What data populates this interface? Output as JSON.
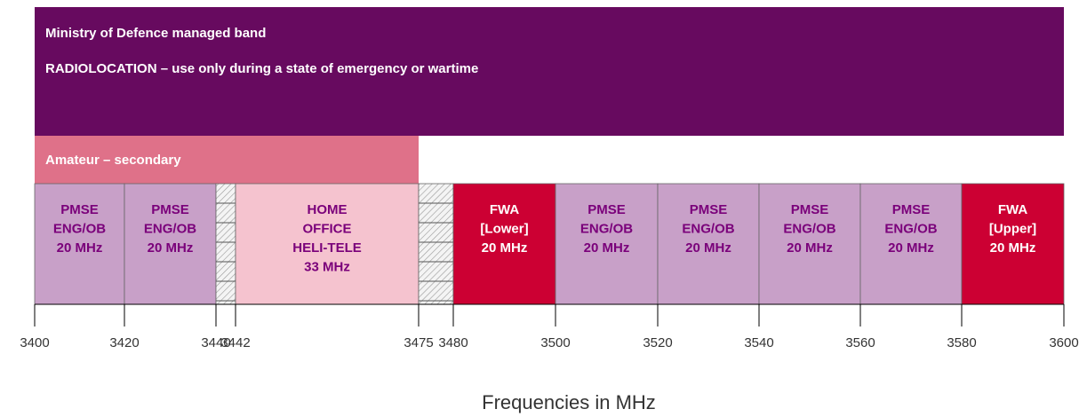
{
  "axis": {
    "title": "Frequencies in MHz",
    "xlim": [
      3400,
      3600
    ],
    "xticks": [
      3400,
      3420,
      3440,
      3442,
      3475,
      3480,
      3500,
      3520,
      3540,
      3560,
      3580,
      3600
    ]
  },
  "bands": {
    "top": [
      {
        "from": 3400,
        "to": 3600,
        "color": "#670a5f",
        "text_color": "#ffffff",
        "lines": [
          "Ministry of Defence managed band",
          "RADIOLOCATION – use only during a state of emergency or wartime"
        ]
      }
    ],
    "secondary": [
      {
        "from": 3400,
        "to": 3475,
        "color": "#df7189",
        "text_color": "#ffffff",
        "lines": [
          "Amateur – secondary"
        ]
      }
    ],
    "main": [
      {
        "from": 3400,
        "to": 3420,
        "color": "#c8a0c8",
        "text_color": "#7a007a",
        "lines": [
          "PMSE",
          "ENG/OB",
          "20 MHz"
        ]
      },
      {
        "from": 3420,
        "to": 3440,
        "color": "#c8a0c8",
        "text_color": "#7a007a",
        "lines": [
          "PMSE",
          "ENG/OB",
          "20 MHz"
        ]
      },
      {
        "from": 3440,
        "to": 3442,
        "hatched": true,
        "lines": []
      },
      {
        "from": 3442,
        "to": 3475,
        "color": "#f5c3cf",
        "text_color": "#7a007a",
        "lines": [
          "HOME",
          "OFFICE",
          "HELI-TELE",
          "33 MHz"
        ]
      },
      {
        "from": 3475,
        "to": 3480,
        "hatched": true,
        "lines": []
      },
      {
        "from": 3480,
        "to": 3500,
        "color": "#cc0033",
        "text_color": "#ffffff",
        "lines": [
          "FWA",
          "[Lower]",
          "20 MHz"
        ]
      },
      {
        "from": 3500,
        "to": 3520,
        "color": "#c8a0c8",
        "text_color": "#7a007a",
        "lines": [
          "PMSE",
          "ENG/OB",
          "20 MHz"
        ]
      },
      {
        "from": 3520,
        "to": 3540,
        "color": "#c8a0c8",
        "text_color": "#7a007a",
        "lines": [
          "PMSE",
          "ENG/OB",
          "20 MHz"
        ]
      },
      {
        "from": 3540,
        "to": 3560,
        "color": "#c8a0c8",
        "text_color": "#7a007a",
        "lines": [
          "PMSE",
          "ENG/OB",
          "20 MHz"
        ]
      },
      {
        "from": 3560,
        "to": 3580,
        "color": "#c8a0c8",
        "text_color": "#7a007a",
        "lines": [
          "PMSE",
          "ENG/OB",
          "20 MHz"
        ]
      },
      {
        "from": 3580,
        "to": 3600,
        "color": "#cc0033",
        "text_color": "#ffffff",
        "lines": [
          "FWA",
          "[Upper]",
          "20 MHz"
        ]
      }
    ]
  }
}
